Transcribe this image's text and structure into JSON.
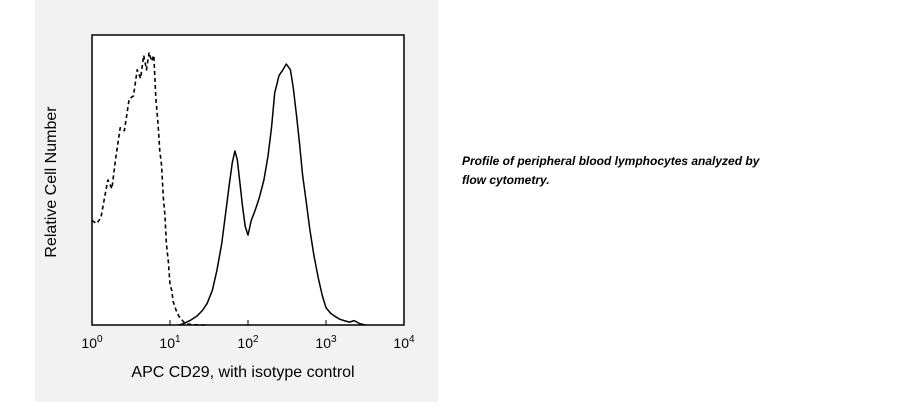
{
  "chart_data": {
    "type": "histogram",
    "xlabel": "APC CD29, with isotype control",
    "ylabel": "Relative Cell Number",
    "x_scale": "log",
    "xlim": [
      1,
      10000
    ],
    "x_ticks": [
      {
        "value": 1,
        "base": "10",
        "exp": "0"
      },
      {
        "value": 10,
        "base": "10",
        "exp": "1"
      },
      {
        "value": 100,
        "base": "10",
        "exp": "2"
      },
      {
        "value": 1000,
        "base": "10",
        "exp": "3"
      },
      {
        "value": 10000,
        "base": "10",
        "exp": "4"
      }
    ],
    "ylim": [
      0,
      100
    ],
    "grid": false,
    "series": [
      {
        "style": "dashed",
        "x": [
          1,
          1.15,
          1.3,
          1.45,
          1.6,
          1.8,
          2.0,
          2.3,
          2.6,
          3.0,
          3.4,
          3.8,
          4.2,
          4.6,
          5.0,
          5.4,
          5.8,
          6.2,
          6.6,
          7.0,
          7.4,
          7.8,
          8.2,
          8.6,
          9.0,
          9.5,
          10,
          10.5,
          11,
          12,
          13,
          14,
          15,
          16,
          17,
          19,
          21,
          24,
          28
        ],
        "y": [
          36,
          35,
          37,
          44,
          50,
          47,
          57,
          68,
          67,
          78,
          79,
          88,
          85,
          93,
          88,
          94,
          91,
          93,
          78,
          70,
          60,
          55,
          44,
          38,
          28,
          22,
          14,
          12,
          8,
          5,
          3,
          2,
          1,
          0.5,
          0.3,
          0.2,
          0.1,
          0,
          0
        ]
      },
      {
        "style": "solid",
        "x": [
          13,
          15,
          18,
          22,
          26,
          30,
          35,
          40,
          46,
          52,
          58,
          63,
          68,
          73,
          78,
          85,
          92,
          100,
          110,
          125,
          140,
          160,
          180,
          200,
          220,
          250,
          280,
          310,
          350,
          380,
          420,
          460,
          500,
          560,
          620,
          700,
          800,
          900,
          1000,
          1150,
          1300,
          1500,
          1700,
          2000,
          2300,
          2700,
          3200
        ],
        "y": [
          0,
          0.5,
          1.5,
          3,
          5,
          7.5,
          12,
          19,
          28,
          39,
          49,
          56,
          60,
          57,
          50,
          41,
          34,
          31,
          36,
          40,
          44,
          50,
          58,
          68,
          80,
          86,
          88,
          90,
          88,
          82,
          72,
          62,
          52,
          42,
          33,
          24,
          16,
          10,
          6,
          4,
          3,
          2,
          1.5,
          1,
          1.5,
          0.5,
          0
        ]
      }
    ]
  },
  "caption": {
    "line1": "Profile of peripheral blood lymphocytes analyzed by",
    "line2": "flow cytometry."
  }
}
